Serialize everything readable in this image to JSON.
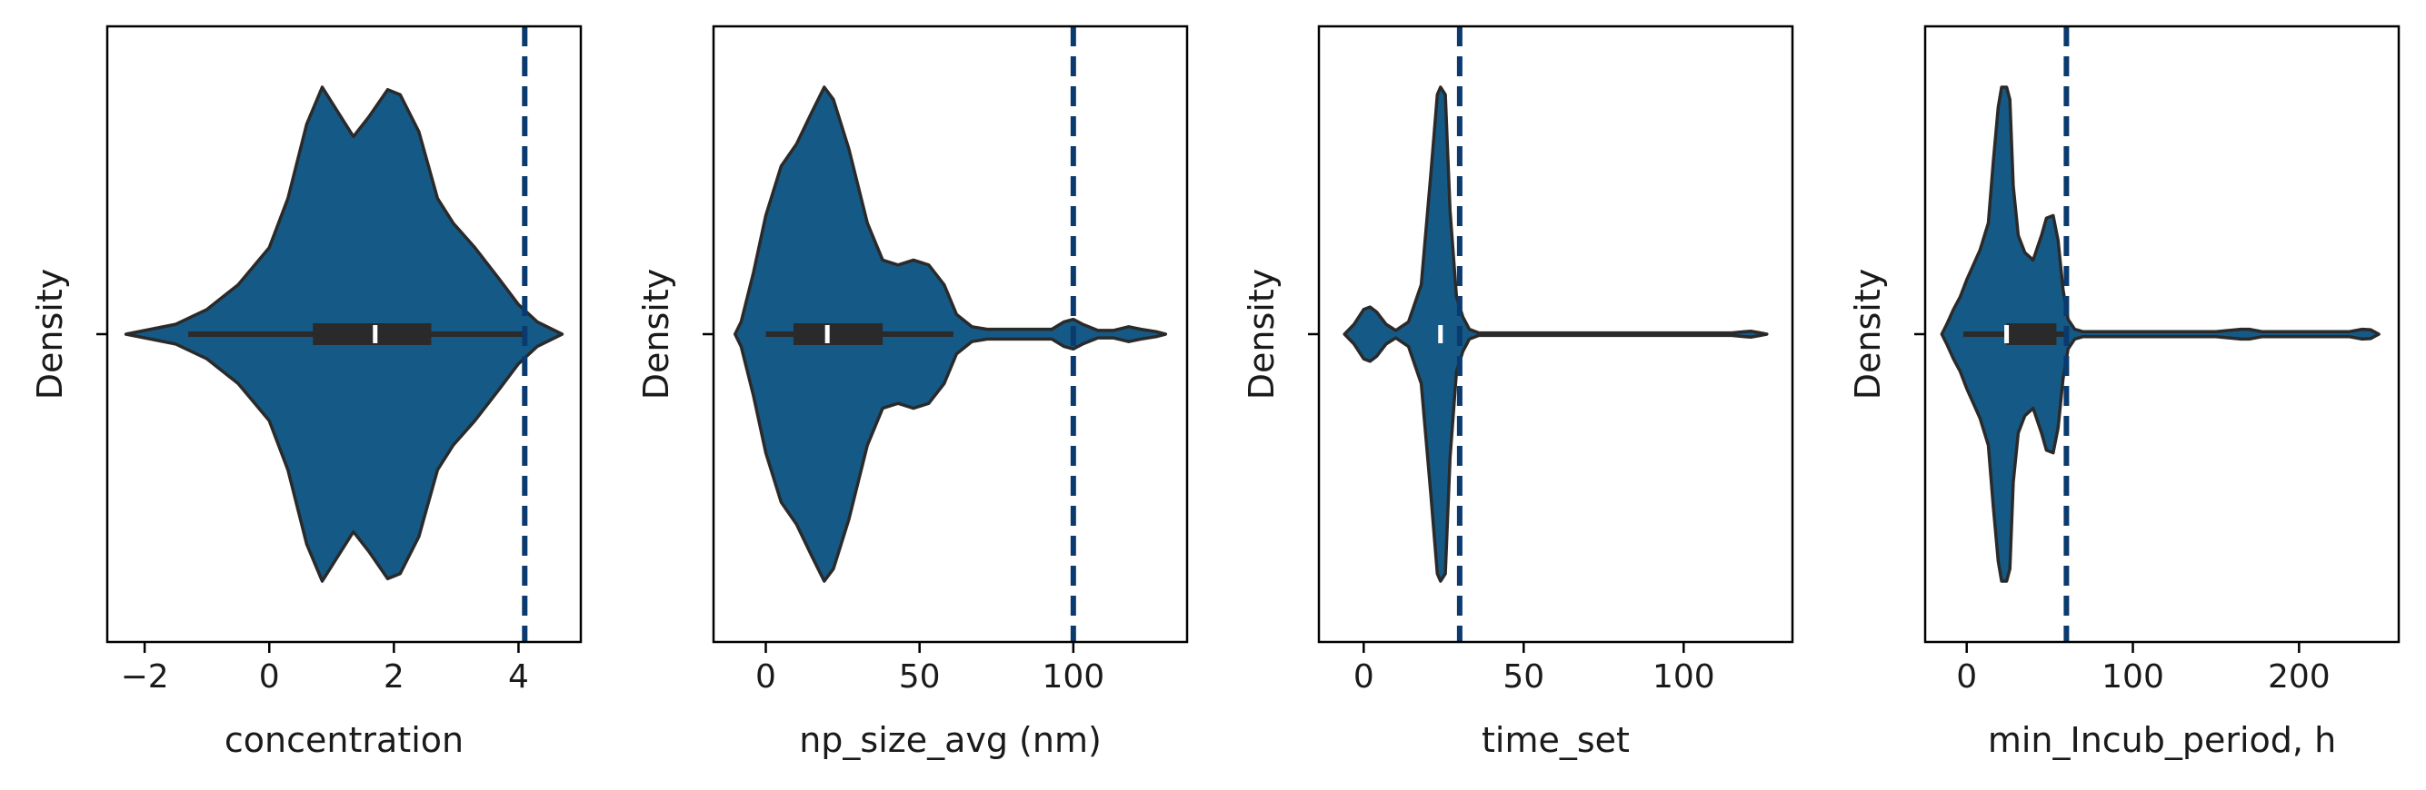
{
  "figure": {
    "background": "#ffffff",
    "violin_color": "#155a87",
    "outline_color": "#2a2a2a",
    "box_color": "#2a2a2a",
    "median_color": "#ffffff",
    "threshold_color": "#0a3a6e"
  },
  "chart_data": [
    {
      "type": "violin",
      "orientation": "horizontal",
      "xlabel": "concentration",
      "ylabel": "Density",
      "xlim": [
        -2.6,
        5.0
      ],
      "xticks": [
        -2,
        0,
        2,
        4
      ],
      "xtick_labels": [
        "−2",
        "0",
        "2",
        "4"
      ],
      "threshold": 4.1,
      "box": {
        "q1": 0.7,
        "median": 1.7,
        "q3": 2.6,
        "whisker_low": -1.3,
        "whisker_high": 4.1
      },
      "density": [
        [
          -2.3,
          0.0
        ],
        [
          -1.5,
          0.04
        ],
        [
          -1.0,
          0.1
        ],
        [
          -0.5,
          0.2
        ],
        [
          0.0,
          0.35
        ],
        [
          0.3,
          0.55
        ],
        [
          0.6,
          0.85
        ],
        [
          0.85,
          1.0
        ],
        [
          1.1,
          0.9
        ],
        [
          1.35,
          0.8
        ],
        [
          1.6,
          0.88
        ],
        [
          1.9,
          0.99
        ],
        [
          2.1,
          0.97
        ],
        [
          2.4,
          0.82
        ],
        [
          2.7,
          0.55
        ],
        [
          2.95,
          0.45
        ],
        [
          3.3,
          0.35
        ],
        [
          3.7,
          0.22
        ],
        [
          4.0,
          0.12
        ],
        [
          4.3,
          0.05
        ],
        [
          4.7,
          0.0
        ]
      ]
    },
    {
      "type": "violin",
      "orientation": "horizontal",
      "xlabel": "np_size_avg (nm)",
      "ylabel": "Density",
      "xlim": [
        -17,
        137
      ],
      "xticks": [
        0,
        50,
        100
      ],
      "xtick_labels": [
        "0",
        "50",
        "100"
      ],
      "threshold": 100,
      "box": {
        "q1": 9,
        "median": 20,
        "q3": 38,
        "whisker_low": 0,
        "whisker_high": 61
      },
      "density": [
        [
          -10,
          0.0
        ],
        [
          -8,
          0.05
        ],
        [
          -4,
          0.25
        ],
        [
          0,
          0.48
        ],
        [
          5,
          0.68
        ],
        [
          10,
          0.77
        ],
        [
          15,
          0.9
        ],
        [
          19,
          1.0
        ],
        [
          22,
          0.95
        ],
        [
          27,
          0.75
        ],
        [
          33,
          0.45
        ],
        [
          38,
          0.3
        ],
        [
          43,
          0.28
        ],
        [
          48,
          0.3
        ],
        [
          53,
          0.28
        ],
        [
          58,
          0.2
        ],
        [
          62,
          0.08
        ],
        [
          67,
          0.03
        ],
        [
          72,
          0.02
        ],
        [
          80,
          0.02
        ],
        [
          88,
          0.02
        ],
        [
          93,
          0.02
        ],
        [
          97,
          0.05
        ],
        [
          100,
          0.06
        ],
        [
          103,
          0.04
        ],
        [
          108,
          0.015
        ],
        [
          113,
          0.015
        ],
        [
          118,
          0.03
        ],
        [
          122,
          0.02
        ],
        [
          127,
          0.01
        ],
        [
          130,
          0.0
        ]
      ]
    },
    {
      "type": "violin",
      "orientation": "horizontal",
      "xlabel": "time_set",
      "ylabel": "Density",
      "xlim": [
        -14,
        134
      ],
      "xticks": [
        0,
        50,
        100
      ],
      "xtick_labels": [
        "0",
        "50",
        "100"
      ],
      "threshold": 30,
      "box": {
        "q1": 24,
        "median": 24,
        "q3": 24,
        "whisker_low": 24,
        "whisker_high": 24
      },
      "density": [
        [
          -6,
          0.0
        ],
        [
          -3,
          0.04
        ],
        [
          0,
          0.1
        ],
        [
          2,
          0.11
        ],
        [
          4,
          0.09
        ],
        [
          7,
          0.04
        ],
        [
          10,
          0.015
        ],
        [
          14,
          0.05
        ],
        [
          18,
          0.2
        ],
        [
          21,
          0.65
        ],
        [
          23,
          0.97
        ],
        [
          24,
          1.0
        ],
        [
          25.5,
          0.97
        ],
        [
          27,
          0.5
        ],
        [
          29,
          0.15
        ],
        [
          31,
          0.07
        ],
        [
          33,
          0.02
        ],
        [
          36,
          0.005
        ],
        [
          60,
          0.005
        ],
        [
          115,
          0.005
        ],
        [
          119,
          0.01
        ],
        [
          121,
          0.012
        ],
        [
          124,
          0.005
        ],
        [
          126,
          0.0
        ]
      ]
    },
    {
      "type": "violin",
      "orientation": "horizontal",
      "xlabel": "min_Incub_period, h",
      "ylabel": "Density",
      "xlim": [
        -25,
        260
      ],
      "xticks": [
        0,
        100,
        200
      ],
      "xtick_labels": [
        "0",
        "100",
        "200"
      ],
      "threshold": 60,
      "box": {
        "q1": 24,
        "median": 24,
        "q3": 54,
        "whisker_low": -2,
        "whisker_high": 60
      },
      "density": [
        [
          -15,
          0.0
        ],
        [
          -12,
          0.04
        ],
        [
          -8,
          0.1
        ],
        [
          -4,
          0.15
        ],
        [
          0,
          0.22
        ],
        [
          4,
          0.28
        ],
        [
          8,
          0.34
        ],
        [
          13,
          0.45
        ],
        [
          16,
          0.7
        ],
        [
          19,
          0.92
        ],
        [
          21,
          1.0
        ],
        [
          24,
          1.0
        ],
        [
          26,
          0.95
        ],
        [
          28,
          0.6
        ],
        [
          31,
          0.4
        ],
        [
          35,
          0.33
        ],
        [
          40,
          0.3
        ],
        [
          45,
          0.4
        ],
        [
          48,
          0.47
        ],
        [
          52,
          0.48
        ],
        [
          55,
          0.38
        ],
        [
          58,
          0.18
        ],
        [
          61,
          0.06
        ],
        [
          65,
          0.02
        ],
        [
          70,
          0.01
        ],
        [
          100,
          0.01
        ],
        [
          150,
          0.01
        ],
        [
          165,
          0.02
        ],
        [
          170,
          0.02
        ],
        [
          178,
          0.01
        ],
        [
          230,
          0.01
        ],
        [
          238,
          0.02
        ],
        [
          243,
          0.018
        ],
        [
          248,
          0.0
        ]
      ]
    }
  ]
}
